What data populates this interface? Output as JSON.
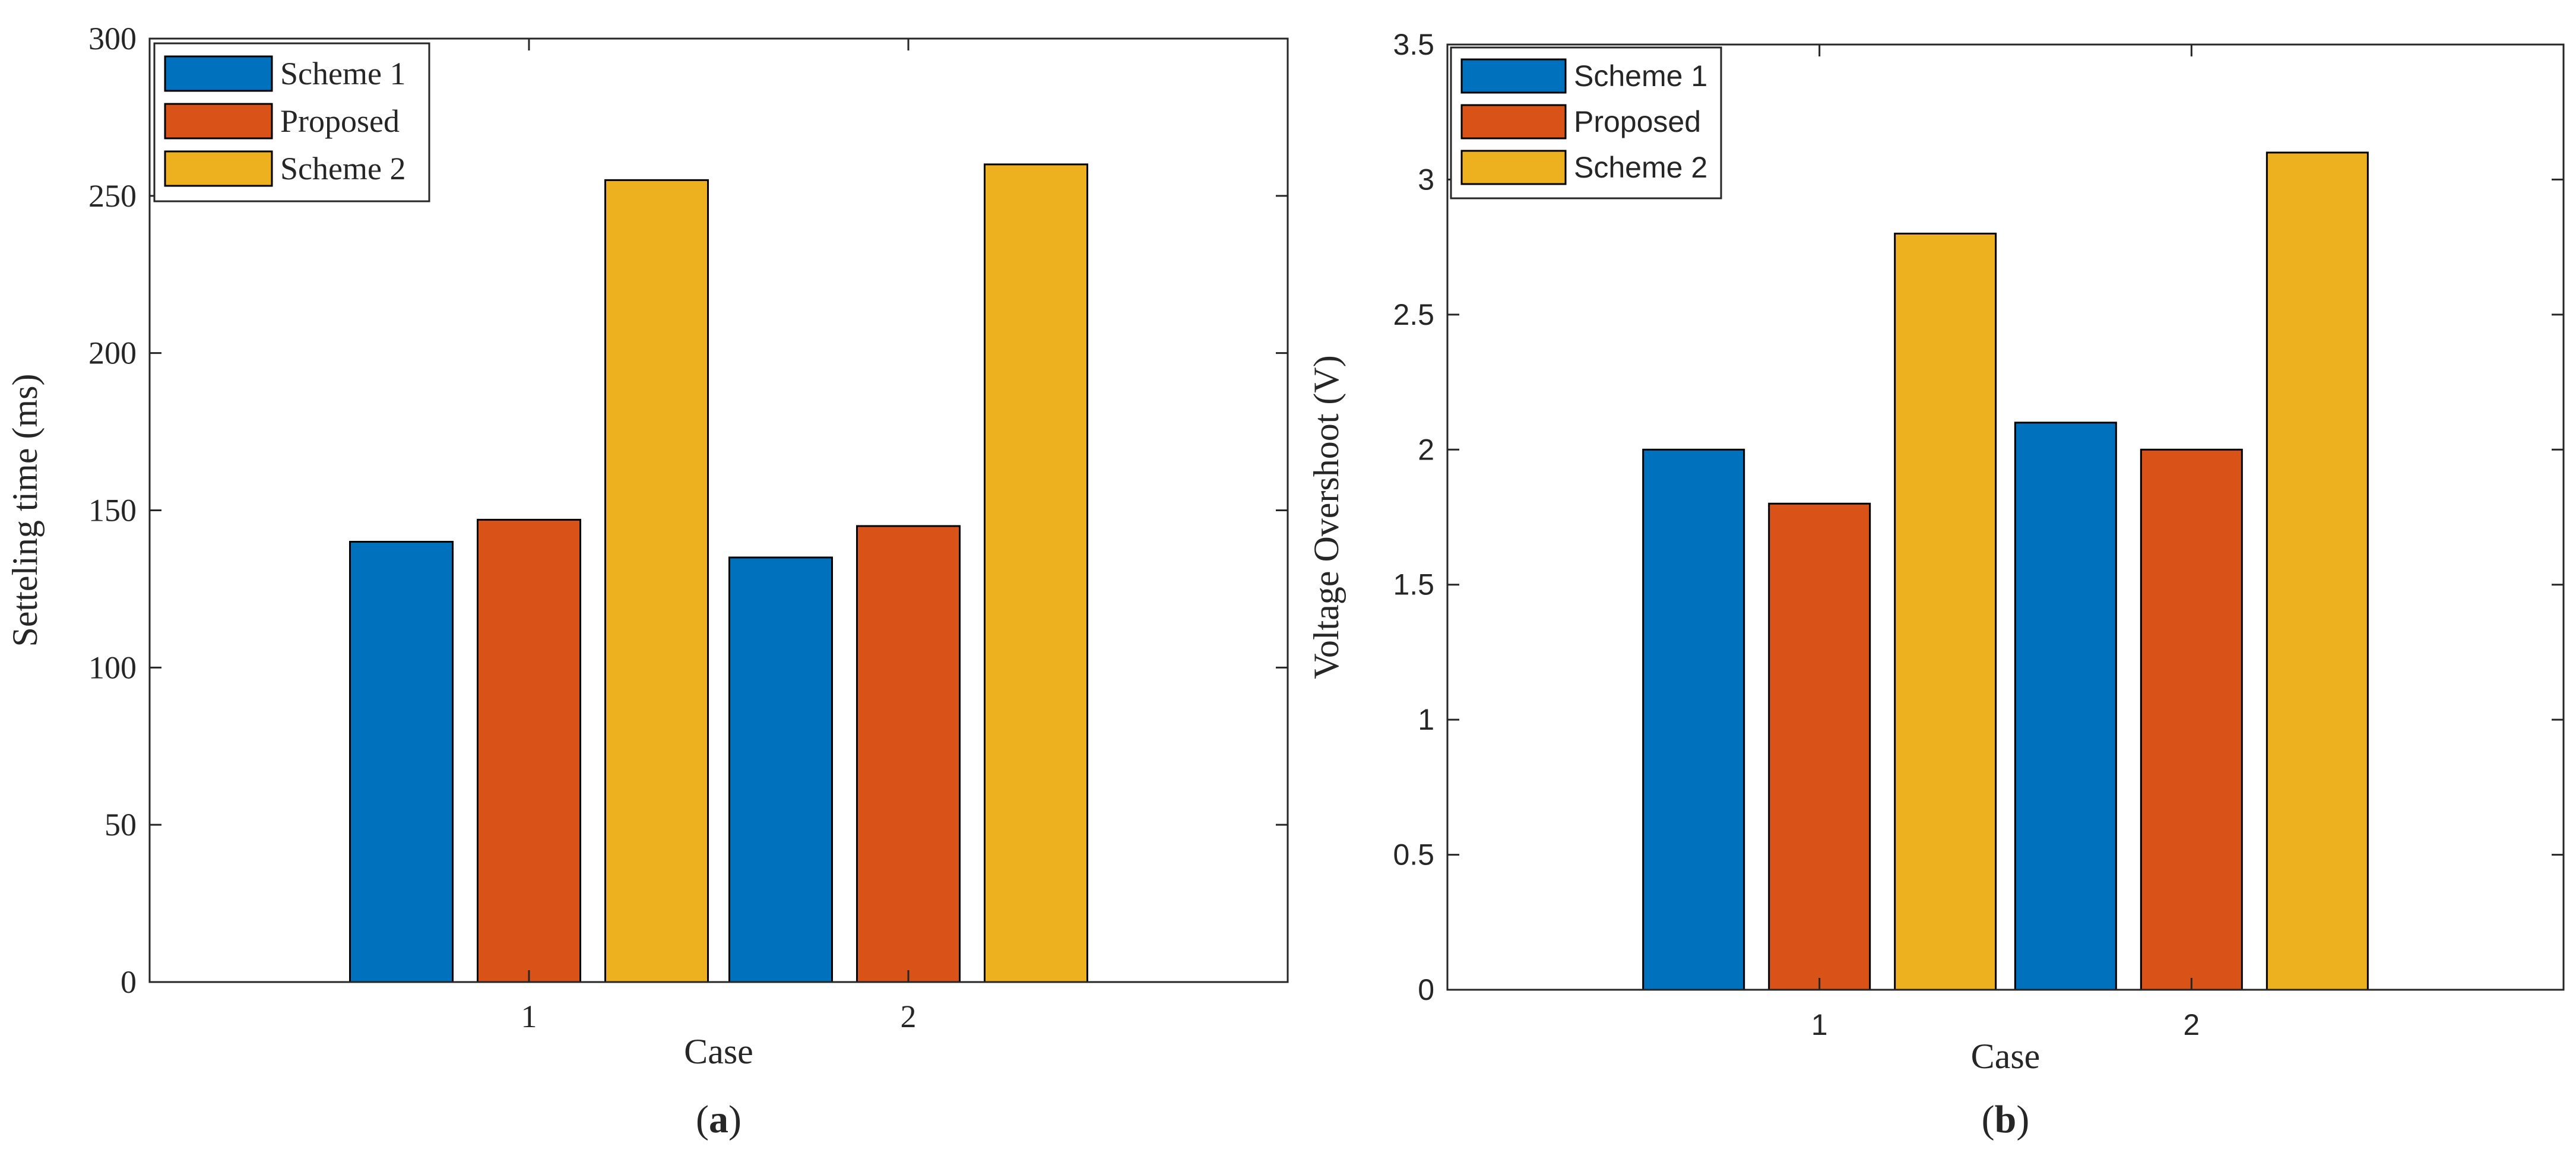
{
  "colors": {
    "scheme1": "#0072BD",
    "proposed": "#D95319",
    "scheme2": "#EDB120",
    "axis": "#262626"
  },
  "chart_data": [
    {
      "id": "a",
      "type": "bar",
      "panel_label": "a",
      "categories": [
        "1",
        "2"
      ],
      "series": [
        {
          "name": "Scheme 1",
          "values": [
            140,
            135
          ],
          "color": "#0072BD"
        },
        {
          "name": "Proposed",
          "values": [
            147,
            145
          ],
          "color": "#D95319"
        },
        {
          "name": "Scheme 2",
          "values": [
            255,
            260
          ],
          "color": "#EDB120"
        }
      ],
      "title": "",
      "xlabel": "Case",
      "ylabel": "Setteling time (ms)",
      "ylim": [
        0,
        300
      ],
      "yticks": [
        0,
        50,
        100,
        150,
        200,
        250,
        300
      ],
      "ytick_labels": [
        "0",
        "50",
        "100",
        "150",
        "200",
        "250",
        "300"
      ],
      "grid": false,
      "legend_position": "top-left"
    },
    {
      "id": "b",
      "type": "bar",
      "panel_label": "b",
      "categories": [
        "1",
        "2"
      ],
      "series": [
        {
          "name": "Scheme 1",
          "values": [
            2.0,
            2.1
          ],
          "color": "#0072BD"
        },
        {
          "name": "Proposed",
          "values": [
            1.8,
            2.0
          ],
          "color": "#D95319"
        },
        {
          "name": "Scheme 2",
          "values": [
            2.8,
            3.1
          ],
          "color": "#EDB120"
        }
      ],
      "title": "",
      "xlabel": "Case",
      "ylabel": "Voltage Overshoot (V)",
      "ylim": [
        0,
        3.5
      ],
      "yticks": [
        0,
        0.5,
        1,
        1.5,
        2,
        2.5,
        3,
        3.5
      ],
      "ytick_labels": [
        "0",
        "0.5",
        "1",
        "1.5",
        "2",
        "2.5",
        "3",
        "3.5"
      ],
      "grid": false,
      "legend_position": "top-left"
    }
  ]
}
